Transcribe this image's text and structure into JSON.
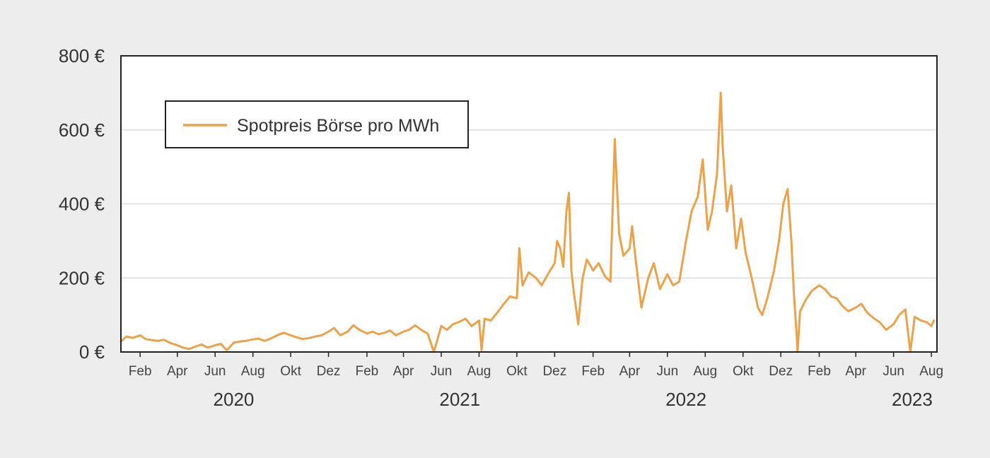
{
  "chart_data": {
    "type": "line",
    "title": "",
    "xlabel": "",
    "ylabel": "",
    "ylim": [
      0,
      800
    ],
    "xlim": [
      "2020-01-01",
      "2023-08-10"
    ],
    "yticks": [
      {
        "value": 0,
        "label": "0 €"
      },
      {
        "value": 200,
        "label": "200 €"
      },
      {
        "value": 400,
        "label": "400 €"
      },
      {
        "value": 600,
        "label": "600 €"
      },
      {
        "value": 800,
        "label": "800 €"
      }
    ],
    "xticks": [
      {
        "date": "2020-02-01",
        "label": "Feb"
      },
      {
        "date": "2020-04-01",
        "label": "Apr"
      },
      {
        "date": "2020-06-01",
        "label": "Jun"
      },
      {
        "date": "2020-08-01",
        "label": "Aug"
      },
      {
        "date": "2020-10-01",
        "label": "Okt"
      },
      {
        "date": "2020-12-01",
        "label": "Dez"
      },
      {
        "date": "2021-02-01",
        "label": "Feb"
      },
      {
        "date": "2021-04-01",
        "label": "Apr"
      },
      {
        "date": "2021-06-01",
        "label": "Jun"
      },
      {
        "date": "2021-08-01",
        "label": "Aug"
      },
      {
        "date": "2021-10-01",
        "label": "Okt"
      },
      {
        "date": "2021-12-01",
        "label": "Dez"
      },
      {
        "date": "2022-02-01",
        "label": "Feb"
      },
      {
        "date": "2022-04-01",
        "label": "Apr"
      },
      {
        "date": "2022-06-01",
        "label": "Jun"
      },
      {
        "date": "2022-08-01",
        "label": "Aug"
      },
      {
        "date": "2022-10-01",
        "label": "Okt"
      },
      {
        "date": "2022-12-01",
        "label": "Dez"
      },
      {
        "date": "2023-02-01",
        "label": "Feb"
      },
      {
        "date": "2023-04-01",
        "label": "Apr"
      },
      {
        "date": "2023-06-01",
        "label": "Jun"
      },
      {
        "date": "2023-08-01",
        "label": "Aug"
      }
    ],
    "years": [
      {
        "date": "2020-07-01",
        "label": "2020"
      },
      {
        "date": "2021-07-01",
        "label": "2021"
      },
      {
        "date": "2022-07-01",
        "label": "2022"
      },
      {
        "date": "2023-07-01",
        "label": "2023"
      }
    ],
    "grid": true,
    "legend_position": "top-left",
    "series": [
      {
        "name": "Spotpreis Börse pro MWh",
        "color": "#eba24a",
        "points": [
          [
            "2020-01-01",
            28
          ],
          [
            "2020-01-10",
            42
          ],
          [
            "2020-01-20",
            38
          ],
          [
            "2020-02-01",
            45
          ],
          [
            "2020-02-10",
            35
          ],
          [
            "2020-02-20",
            32
          ],
          [
            "2020-03-01",
            30
          ],
          [
            "2020-03-10",
            33
          ],
          [
            "2020-03-20",
            25
          ],
          [
            "2020-04-01",
            18
          ],
          [
            "2020-04-10",
            12
          ],
          [
            "2020-04-20",
            8
          ],
          [
            "2020-05-01",
            15
          ],
          [
            "2020-05-10",
            20
          ],
          [
            "2020-05-20",
            12
          ],
          [
            "2020-06-01",
            18
          ],
          [
            "2020-06-10",
            22
          ],
          [
            "2020-06-20",
            5
          ],
          [
            "2020-07-01",
            25
          ],
          [
            "2020-07-10",
            28
          ],
          [
            "2020-07-20",
            30
          ],
          [
            "2020-08-01",
            34
          ],
          [
            "2020-08-10",
            36
          ],
          [
            "2020-08-20",
            30
          ],
          [
            "2020-09-01",
            38
          ],
          [
            "2020-09-10",
            46
          ],
          [
            "2020-09-20",
            52
          ],
          [
            "2020-10-01",
            45
          ],
          [
            "2020-10-10",
            40
          ],
          [
            "2020-10-20",
            35
          ],
          [
            "2020-11-01",
            38
          ],
          [
            "2020-11-10",
            42
          ],
          [
            "2020-11-20",
            45
          ],
          [
            "2020-12-01",
            55
          ],
          [
            "2020-12-10",
            65
          ],
          [
            "2020-12-20",
            45
          ],
          [
            "2021-01-01",
            55
          ],
          [
            "2021-01-10",
            72
          ],
          [
            "2021-01-20",
            60
          ],
          [
            "2021-02-01",
            50
          ],
          [
            "2021-02-10",
            55
          ],
          [
            "2021-02-20",
            48
          ],
          [
            "2021-03-01",
            52
          ],
          [
            "2021-03-10",
            58
          ],
          [
            "2021-03-20",
            45
          ],
          [
            "2021-04-01",
            55
          ],
          [
            "2021-04-10",
            60
          ],
          [
            "2021-04-20",
            72
          ],
          [
            "2021-05-01",
            58
          ],
          [
            "2021-05-10",
            50
          ],
          [
            "2021-05-20",
            0
          ],
          [
            "2021-06-01",
            70
          ],
          [
            "2021-06-10",
            60
          ],
          [
            "2021-06-20",
            75
          ],
          [
            "2021-07-01",
            82
          ],
          [
            "2021-07-10",
            90
          ],
          [
            "2021-07-20",
            70
          ],
          [
            "2021-08-01",
            85
          ],
          [
            "2021-08-05",
            5
          ],
          [
            "2021-08-10",
            90
          ],
          [
            "2021-08-20",
            85
          ],
          [
            "2021-09-01",
            110
          ],
          [
            "2021-09-10",
            130
          ],
          [
            "2021-09-20",
            150
          ],
          [
            "2021-10-01",
            145
          ],
          [
            "2021-10-05",
            280
          ],
          [
            "2021-10-10",
            180
          ],
          [
            "2021-10-20",
            215
          ],
          [
            "2021-11-01",
            200
          ],
          [
            "2021-11-10",
            180
          ],
          [
            "2021-11-20",
            210
          ],
          [
            "2021-12-01",
            240
          ],
          [
            "2021-12-05",
            300
          ],
          [
            "2021-12-10",
            280
          ],
          [
            "2021-12-15",
            230
          ],
          [
            "2021-12-20",
            380
          ],
          [
            "2021-12-24",
            430
          ],
          [
            "2021-12-28",
            220
          ],
          [
            "2022-01-01",
            160
          ],
          [
            "2022-01-08",
            75
          ],
          [
            "2022-01-15",
            200
          ],
          [
            "2022-01-22",
            250
          ],
          [
            "2022-02-01",
            220
          ],
          [
            "2022-02-10",
            240
          ],
          [
            "2022-02-20",
            205
          ],
          [
            "2022-03-01",
            190
          ],
          [
            "2022-03-08",
            575
          ],
          [
            "2022-03-15",
            320
          ],
          [
            "2022-03-22",
            260
          ],
          [
            "2022-04-01",
            280
          ],
          [
            "2022-04-05",
            340
          ],
          [
            "2022-04-10",
            260
          ],
          [
            "2022-04-20",
            120
          ],
          [
            "2022-05-01",
            200
          ],
          [
            "2022-05-10",
            240
          ],
          [
            "2022-05-20",
            170
          ],
          [
            "2022-06-01",
            210
          ],
          [
            "2022-06-10",
            180
          ],
          [
            "2022-06-20",
            190
          ],
          [
            "2022-07-01",
            300
          ],
          [
            "2022-07-10",
            380
          ],
          [
            "2022-07-20",
            420
          ],
          [
            "2022-07-28",
            520
          ],
          [
            "2022-08-05",
            330
          ],
          [
            "2022-08-12",
            380
          ],
          [
            "2022-08-20",
            480
          ],
          [
            "2022-08-26",
            700
          ],
          [
            "2022-08-29",
            560
          ],
          [
            "2022-09-05",
            380
          ],
          [
            "2022-09-12",
            450
          ],
          [
            "2022-09-20",
            280
          ],
          [
            "2022-09-28",
            360
          ],
          [
            "2022-10-05",
            270
          ],
          [
            "2022-10-15",
            200
          ],
          [
            "2022-10-25",
            120
          ],
          [
            "2022-11-01",
            100
          ],
          [
            "2022-11-10",
            150
          ],
          [
            "2022-11-20",
            220
          ],
          [
            "2022-11-28",
            300
          ],
          [
            "2022-12-05",
            400
          ],
          [
            "2022-12-12",
            440
          ],
          [
            "2022-12-18",
            300
          ],
          [
            "2022-12-22",
            160
          ],
          [
            "2022-12-26",
            60
          ],
          [
            "2022-12-28",
            0
          ],
          [
            "2023-01-01",
            110
          ],
          [
            "2023-01-10",
            140
          ],
          [
            "2023-01-20",
            165
          ],
          [
            "2023-02-01",
            180
          ],
          [
            "2023-02-10",
            170
          ],
          [
            "2023-02-20",
            150
          ],
          [
            "2023-03-01",
            145
          ],
          [
            "2023-03-10",
            125
          ],
          [
            "2023-03-20",
            110
          ],
          [
            "2023-04-01",
            120
          ],
          [
            "2023-04-10",
            130
          ],
          [
            "2023-04-20",
            105
          ],
          [
            "2023-05-01",
            90
          ],
          [
            "2023-05-10",
            80
          ],
          [
            "2023-05-20",
            60
          ],
          [
            "2023-06-01",
            75
          ],
          [
            "2023-06-10",
            100
          ],
          [
            "2023-06-20",
            115
          ],
          [
            "2023-06-28",
            0
          ],
          [
            "2023-07-05",
            95
          ],
          [
            "2023-07-15",
            85
          ],
          [
            "2023-07-25",
            80
          ],
          [
            "2023-08-01",
            70
          ],
          [
            "2023-08-05",
            85
          ]
        ]
      }
    ]
  }
}
